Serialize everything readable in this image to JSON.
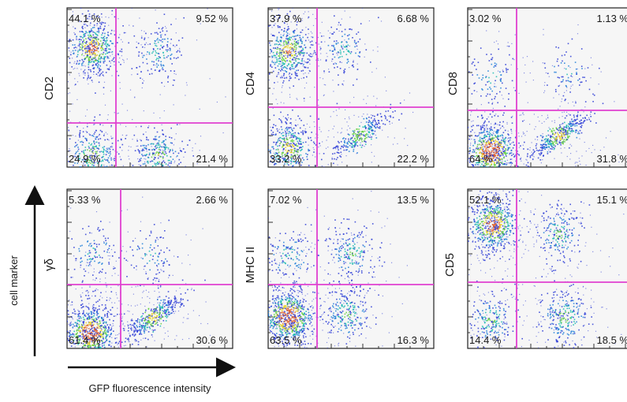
{
  "figure": {
    "y_axis_label": "cell marker",
    "x_axis_label": "GFP fluorescence intensity",
    "gate_color": "#e040d0",
    "panel_background": "#f6f6f6",
    "density_colors": [
      "#2b3bd6",
      "#1e7fd8",
      "#17b8b0",
      "#5fcf3c",
      "#e6d21e",
      "#e2612a"
    ]
  },
  "chart_data": [
    {
      "type": "scatter",
      "marker": "CD2",
      "quadrants": {
        "upper_left": "44.1 %",
        "upper_right": "9.52 %",
        "lower_left": "24.9 %",
        "lower_right": "21.4 %"
      },
      "clusters": [
        {
          "quadrant": "upper_left",
          "x": 0.15,
          "y": 0.75,
          "share": 44.1
        },
        {
          "quadrant": "upper_right",
          "x": 0.55,
          "y": 0.73,
          "share": 9.52
        },
        {
          "quadrant": "lower_left",
          "x": 0.15,
          "y": 0.08,
          "share": 24.9
        },
        {
          "quadrant": "lower_right",
          "x": 0.55,
          "y": 0.08,
          "share": 21.4
        }
      ]
    },
    {
      "type": "scatter",
      "marker": "CD4",
      "quadrants": {
        "upper_left": "37.9 %",
        "upper_right": "6.68 %",
        "lower_left": "33.2 %",
        "lower_right": "22.2 %"
      },
      "clusters": [
        {
          "quadrant": "upper_left",
          "x": 0.12,
          "y": 0.73,
          "share": 37.9
        },
        {
          "quadrant": "upper_right",
          "x": 0.45,
          "y": 0.74,
          "share": 6.68
        },
        {
          "quadrant": "lower_left",
          "x": 0.12,
          "y": 0.12,
          "share": 33.2
        },
        {
          "quadrant": "lower_right",
          "x": 0.55,
          "y": 0.2,
          "share": 22.2
        }
      ]
    },
    {
      "type": "scatter",
      "marker": "CD8",
      "quadrants": {
        "upper_left": "3.02 %",
        "upper_right": "1.13 %",
        "lower_left": "64 %",
        "lower_right": "31.8 %"
      },
      "clusters": [
        {
          "quadrant": "upper_left",
          "x": 0.14,
          "y": 0.57,
          "share": 3.02
        },
        {
          "quadrant": "upper_right",
          "x": 0.6,
          "y": 0.6,
          "share": 1.13
        },
        {
          "quadrant": "lower_left",
          "x": 0.14,
          "y": 0.1,
          "share": 64
        },
        {
          "quadrant": "lower_right",
          "x": 0.55,
          "y": 0.2,
          "share": 31.8
        }
      ]
    },
    {
      "type": "scatter",
      "marker": "γδ",
      "quadrants": {
        "upper_left": "5.33 %",
        "upper_right": "2.66 %",
        "lower_left": "61.4 %",
        "lower_right": "30.6 %"
      },
      "clusters": [
        {
          "quadrant": "upper_left",
          "x": 0.16,
          "y": 0.6,
          "share": 5.33
        },
        {
          "quadrant": "upper_right",
          "x": 0.5,
          "y": 0.58,
          "share": 2.66
        },
        {
          "quadrant": "lower_left",
          "x": 0.14,
          "y": 0.1,
          "share": 61.4
        },
        {
          "quadrant": "lower_right",
          "x": 0.52,
          "y": 0.2,
          "share": 30.6
        }
      ]
    },
    {
      "type": "scatter",
      "marker": "MHC II",
      "quadrants": {
        "upper_left": "7.02 %",
        "upper_right": "13.5 %",
        "lower_left": "63.5 %",
        "lower_right": "16.3 %"
      },
      "clusters": [
        {
          "quadrant": "upper_left",
          "x": 0.12,
          "y": 0.58,
          "share": 7.02
        },
        {
          "quadrant": "upper_right",
          "x": 0.5,
          "y": 0.6,
          "share": 13.5
        },
        {
          "quadrant": "lower_left",
          "x": 0.12,
          "y": 0.2,
          "share": 63.5
        },
        {
          "quadrant": "lower_right",
          "x": 0.48,
          "y": 0.22,
          "share": 16.3
        }
      ]
    },
    {
      "type": "scatter",
      "marker": "CD5",
      "quadrants": {
        "upper_left": "52.1 %",
        "upper_right": "15.1 %",
        "lower_left": "14.4 %",
        "lower_right": "18.5 %"
      },
      "clusters": [
        {
          "quadrant": "upper_left",
          "x": 0.15,
          "y": 0.78,
          "share": 52.1
        },
        {
          "quadrant": "upper_right",
          "x": 0.55,
          "y": 0.72,
          "share": 15.1
        },
        {
          "quadrant": "lower_left",
          "x": 0.14,
          "y": 0.18,
          "share": 14.4
        },
        {
          "quadrant": "lower_right",
          "x": 0.58,
          "y": 0.2,
          "share": 18.5
        }
      ]
    }
  ]
}
